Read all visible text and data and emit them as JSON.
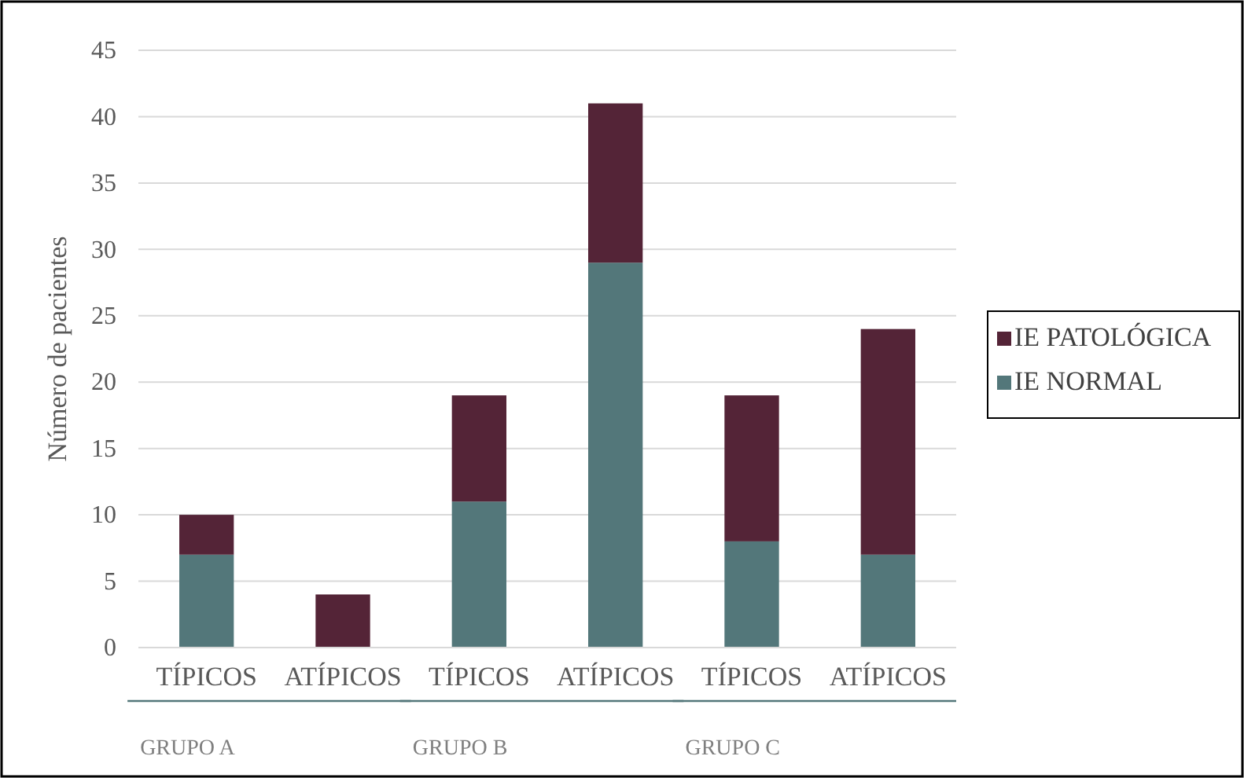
{
  "chart_data": {
    "type": "bar",
    "stacked": true,
    "ylabel": "Número de pacientes",
    "categories": [
      "TÍPICOS",
      "ATÍPICOS",
      "TÍPICOS",
      "ATÍPICOS",
      "TÍPICOS",
      "ATÍPICOS"
    ],
    "series": [
      {
        "name": "IE NORMAL",
        "color": "#53777a",
        "values": [
          7,
          0,
          11,
          29,
          8,
          7
        ]
      },
      {
        "name": "IE PATOLÓGICA",
        "color": "#542437",
        "values": [
          3,
          4,
          8,
          12,
          11,
          17
        ]
      }
    ],
    "ylim": [
      0,
      45
    ],
    "yticks": [
      0,
      5,
      10,
      15,
      20,
      25,
      30,
      35,
      40,
      45
    ],
    "grid": "y",
    "legend": "right",
    "annotations": [
      "GRUPO A",
      "GRUPO B",
      "GRUPO C"
    ]
  }
}
